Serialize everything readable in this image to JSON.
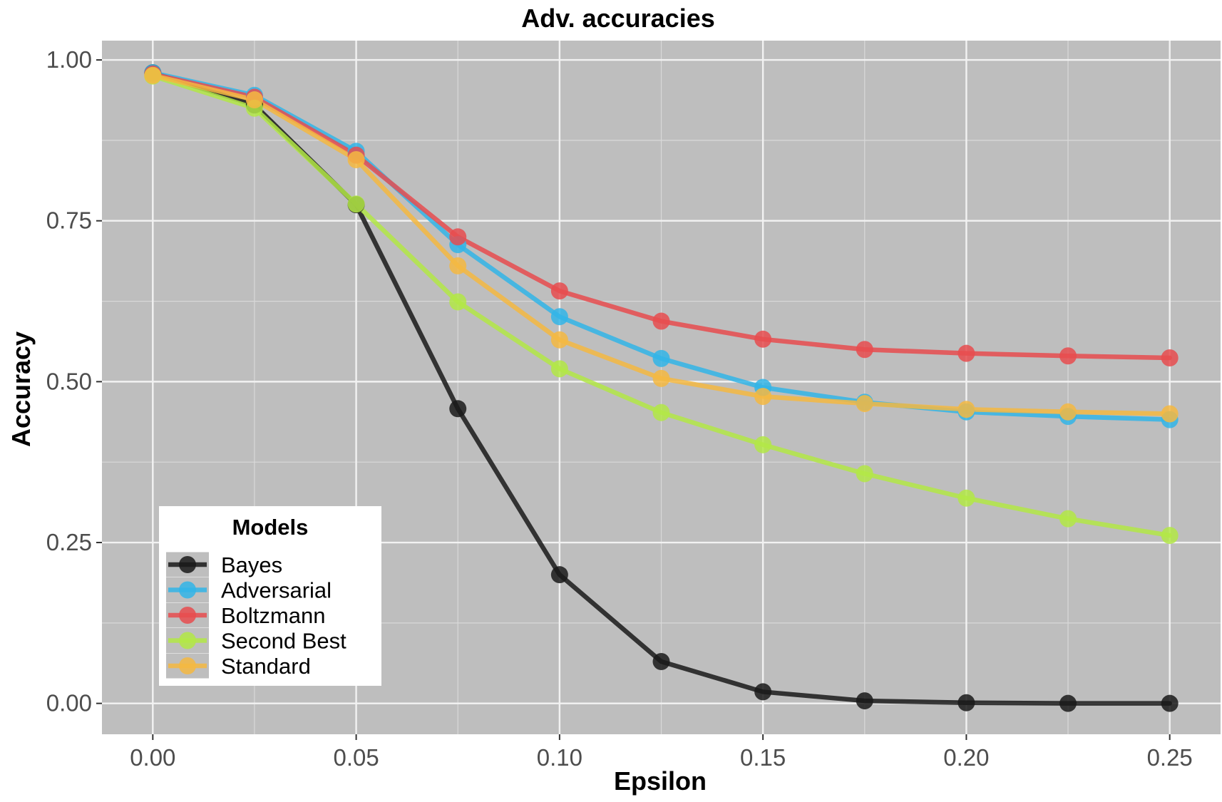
{
  "chart_data": {
    "type": "line",
    "title": "Adv. accuracies",
    "xlabel": "Epsilon",
    "ylabel": "Accuracy",
    "xlim": [
      -0.0125,
      0.2625
    ],
    "ylim": [
      -0.048,
      1.03
    ],
    "x_ticks": [
      0,
      0.05,
      0.1,
      0.15,
      0.2,
      0.25
    ],
    "x_tick_labels": [
      "0.00",
      "0.05",
      "0.10",
      "0.15",
      "0.20",
      "0.25"
    ],
    "y_ticks": [
      0,
      0.25,
      0.5,
      0.75,
      1
    ],
    "y_tick_labels": [
      "0.00",
      "0.25",
      "0.50",
      "0.75",
      "1.00"
    ],
    "grid": true,
    "background": "#bebebe",
    "legend": {
      "title": "Models",
      "placement": "bottom-left"
    },
    "x": [
      0,
      0.025,
      0.05,
      0.075,
      0.1,
      0.125,
      0.15,
      0.175,
      0.2,
      0.225,
      0.25
    ],
    "series": [
      {
        "name": "Bayes",
        "color": "#1a1a1a",
        "values": [
          0.98,
          0.93,
          0.775,
          0.458,
          0.2,
          0.065,
          0.018,
          0.004,
          0.001,
          0.0,
          0.0
        ]
      },
      {
        "name": "Adversarial",
        "color": "#33b5e8",
        "values": [
          0.98,
          0.945,
          0.858,
          0.713,
          0.601,
          0.536,
          0.491,
          0.468,
          0.453,
          0.446,
          0.441
        ]
      },
      {
        "name": "Boltzmann",
        "color": "#e84c4f",
        "values": [
          0.978,
          0.942,
          0.852,
          0.725,
          0.641,
          0.594,
          0.566,
          0.55,
          0.544,
          0.54,
          0.537
        ]
      },
      {
        "name": "Second Best",
        "color": "#b3e846",
        "values": [
          0.975,
          0.925,
          0.776,
          0.624,
          0.52,
          0.452,
          0.402,
          0.357,
          0.319,
          0.287,
          0.261
        ]
      },
      {
        "name": "Standard",
        "color": "#f5b942",
        "values": [
          0.976,
          0.938,
          0.845,
          0.68,
          0.565,
          0.505,
          0.477,
          0.466,
          0.457,
          0.453,
          0.45
        ]
      }
    ]
  }
}
